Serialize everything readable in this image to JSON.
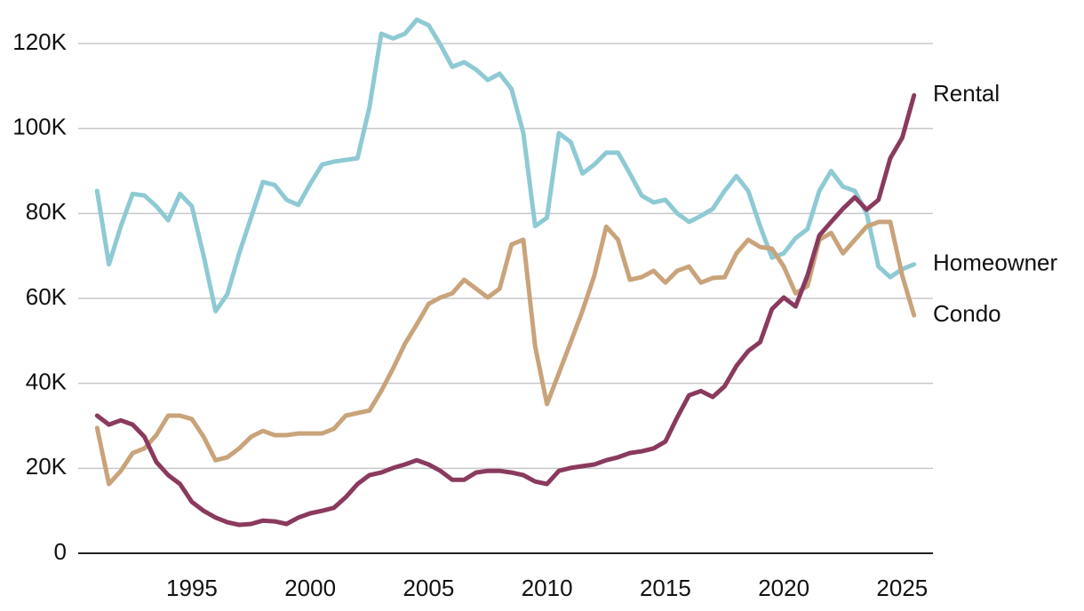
{
  "chart_data": {
    "type": "line",
    "x": [
      1991,
      1991.5,
      1992,
      1992.5,
      1993,
      1993.5,
      1994,
      1994.5,
      1995,
      1995.5,
      1996,
      1996.5,
      1997,
      1997.5,
      1998,
      1998.5,
      1999,
      1999.5,
      2000,
      2000.5,
      2001,
      2001.5,
      2002,
      2002.5,
      2003,
      2003.5,
      2004,
      2004.5,
      2005,
      2005.5,
      2006,
      2006.5,
      2007,
      2007.5,
      2008,
      2008.5,
      2009,
      2009.5,
      2010,
      2010.5,
      2011,
      2011.5,
      2012,
      2012.5,
      2013,
      2013.5,
      2014,
      2014.5,
      2015,
      2015.5,
      2016,
      2016.5,
      2017,
      2017.5,
      2018,
      2018.5,
      2019,
      2019.5,
      2020,
      2020.5,
      2021,
      2021.5,
      2022,
      2022.5,
      2023,
      2023.5,
      2024,
      2024.5,
      2025,
      2025.5
    ],
    "series": [
      {
        "name": "Homeowner",
        "color": "#8ecad3",
        "values": [
          85300,
          68000,
          77000,
          84600,
          84200,
          81700,
          78400,
          84600,
          81700,
          70000,
          57000,
          61000,
          70600,
          79000,
          87400,
          86700,
          83200,
          82000,
          87000,
          91500,
          92200,
          92600,
          93000,
          105000,
          122300,
          121200,
          122300,
          125600,
          124300,
          119700,
          114500,
          115600,
          113900,
          111400,
          112900,
          109300,
          98900,
          77000,
          79000,
          98900,
          96800,
          89400,
          91500,
          94300,
          94300,
          89400,
          84200,
          82600,
          83200,
          80000,
          78000,
          79400,
          81100,
          85300,
          88800,
          85300,
          77000,
          69600,
          70600,
          74200,
          76300,
          85300,
          90000,
          86300,
          85300,
          80000,
          67500,
          65000,
          66900,
          68000
        ]
      },
      {
        "name": "Condo",
        "color": "#c9a37a",
        "values": [
          29500,
          16300,
          19400,
          23600,
          24700,
          27800,
          32400,
          32400,
          31600,
          27400,
          21900,
          22600,
          24700,
          27400,
          28800,
          27800,
          27800,
          28200,
          28200,
          28200,
          29300,
          32400,
          33000,
          33600,
          38200,
          43500,
          49300,
          53900,
          58700,
          60200,
          61200,
          64400,
          62300,
          60200,
          62300,
          72700,
          73800,
          48700,
          35100,
          42400,
          49700,
          57100,
          65400,
          76900,
          73800,
          64400,
          65000,
          66500,
          63700,
          66500,
          67500,
          63700,
          64800,
          65000,
          70600,
          73800,
          72100,
          71700,
          67500,
          61200,
          62900,
          73800,
          75400,
          70600,
          73800,
          76900,
          78000,
          78000,
          65400,
          56000
        ]
      },
      {
        "name": "Rental",
        "color": "#8a3a5e",
        "values": [
          32400,
          30300,
          31300,
          30300,
          27400,
          21500,
          18400,
          16300,
          12100,
          10000,
          8400,
          7300,
          6700,
          6900,
          7700,
          7500,
          6900,
          8400,
          9400,
          10000,
          10700,
          13200,
          16300,
          18400,
          19000,
          20100,
          20900,
          21900,
          20900,
          19400,
          17300,
          17300,
          19000,
          19400,
          19400,
          19000,
          18400,
          16900,
          16300,
          19400,
          20100,
          20500,
          20900,
          21900,
          22600,
          23600,
          24000,
          24700,
          26300,
          32000,
          37200,
          38200,
          36800,
          39300,
          44100,
          47600,
          49700,
          57500,
          60200,
          58100,
          65400,
          74800,
          78000,
          81100,
          83800,
          80900,
          83200,
          93000,
          97800,
          107800
        ]
      }
    ],
    "xlim": [
      1990.2,
      2026.3
    ],
    "xticks": [
      1995,
      2000,
      2005,
      2010,
      2015,
      2020,
      2025
    ],
    "ylim": [
      0,
      120000
    ],
    "yticks": [
      0,
      {
        "value": 20000,
        "label": "20K"
      },
      {
        "value": 40000,
        "label": "40K"
      },
      {
        "value": 60000,
        "label": "60K"
      },
      {
        "value": 80000,
        "label": "80K"
      },
      {
        "value": 100000,
        "label": "100K"
      },
      {
        "value": 120000,
        "label": "120K"
      }
    ],
    "grid": true
  }
}
